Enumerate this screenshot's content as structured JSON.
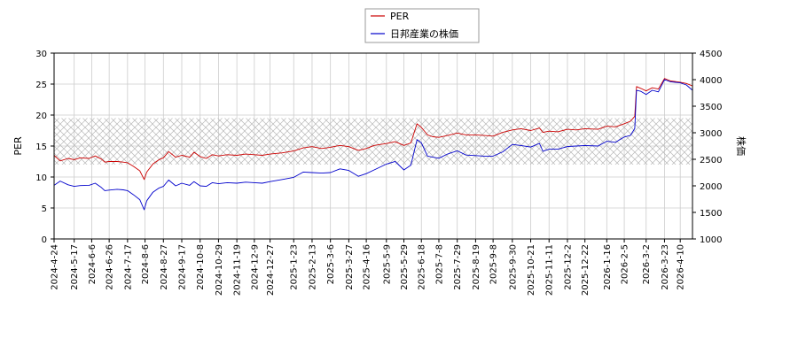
{
  "chart_data": {
    "type": "line",
    "legend": {
      "placement": "top-center",
      "entries": [
        {
          "name": "PER",
          "color": "#cc0000"
        },
        {
          "name": "日邦産業の株価",
          "color": "#0000cc"
        }
      ]
    },
    "ylabel_left": "PER",
    "ylabel_right": "株価",
    "ylim_left": [
      0,
      30
    ],
    "ylim_right": [
      1000,
      4500
    ],
    "yticks_left": [
      "0",
      "5",
      "10",
      "15",
      "20",
      "25",
      "30"
    ],
    "yticks_right": [
      "1000",
      "1500",
      "2000",
      "2500",
      "3000",
      "3500",
      "4000",
      "4500"
    ],
    "xlim": [
      "2024-04-24",
      "2026-04-24"
    ],
    "x_ticks": [
      "2024-4-24",
      "2024-5-17",
      "2024-6-6",
      "2024-6-26",
      "2024-7-17",
      "2024-8-6",
      "2024-8-27",
      "2024-9-17",
      "2024-10-8",
      "2024-10-29",
      "2024-11-19",
      "2024-12-9",
      "2024-12-27",
      "2025-1-23",
      "2025-2-13",
      "2025-3-6",
      "2025-3-27",
      "2025-4-16",
      "2025-5-9",
      "2025-5-29",
      "2025-6-18",
      "2025-7-8",
      "2025-7-29",
      "2025-8-19",
      "2025-9-8",
      "2025-9-30",
      "2025-10-21",
      "2025-11-11",
      "2025-12-2",
      "2025-12-22",
      "2026-1-16",
      "2026-2-5",
      "2026-3-2",
      "2026-3-23",
      "2026-4-10"
    ],
    "grid": true,
    "band": {
      "axis": "left",
      "from": 12,
      "to": 19.5,
      "pattern": "crosshatch"
    },
    "series": [
      {
        "name": "PER",
        "axis": "left",
        "color": "#cc0000",
        "points": [
          [
            "2024-04-24",
            13.5
          ],
          [
            "2024-05-01",
            12.6
          ],
          [
            "2024-05-10",
            13.0
          ],
          [
            "2024-05-17",
            12.8
          ],
          [
            "2024-05-24",
            13.1
          ],
          [
            "2024-06-03",
            13.0
          ],
          [
            "2024-06-10",
            13.4
          ],
          [
            "2024-06-17",
            12.9
          ],
          [
            "2024-06-21",
            12.4
          ],
          [
            "2024-06-26",
            12.5
          ],
          [
            "2024-07-05",
            12.5
          ],
          [
            "2024-07-12",
            12.4
          ],
          [
            "2024-07-17",
            12.3
          ],
          [
            "2024-07-24",
            11.7
          ],
          [
            "2024-07-31",
            11.0
          ],
          [
            "2024-08-05",
            9.6
          ],
          [
            "2024-08-08",
            10.8
          ],
          [
            "2024-08-15",
            12.1
          ],
          [
            "2024-08-22",
            12.8
          ],
          [
            "2024-08-27",
            13.1
          ],
          [
            "2024-09-02",
            14.1
          ],
          [
            "2024-09-10",
            13.2
          ],
          [
            "2024-09-17",
            13.5
          ],
          [
            "2024-09-26",
            13.2
          ],
          [
            "2024-10-01",
            14.0
          ],
          [
            "2024-10-08",
            13.3
          ],
          [
            "2024-10-15",
            13.0
          ],
          [
            "2024-10-22",
            13.6
          ],
          [
            "2024-10-29",
            13.4
          ],
          [
            "2024-11-08",
            13.6
          ],
          [
            "2024-11-19",
            13.5
          ],
          [
            "2024-11-29",
            13.7
          ],
          [
            "2024-12-09",
            13.6
          ],
          [
            "2024-12-18",
            13.5
          ],
          [
            "2024-12-27",
            13.7
          ],
          [
            "2025-01-10",
            13.9
          ],
          [
            "2025-01-23",
            14.2
          ],
          [
            "2025-02-03",
            14.7
          ],
          [
            "2025-02-13",
            14.9
          ],
          [
            "2025-02-24",
            14.6
          ],
          [
            "2025-03-06",
            14.8
          ],
          [
            "2025-03-17",
            15.1
          ],
          [
            "2025-03-27",
            14.9
          ],
          [
            "2025-04-07",
            14.3
          ],
          [
            "2025-04-16",
            14.6
          ],
          [
            "2025-04-25",
            15.1
          ],
          [
            "2025-05-09",
            15.4
          ],
          [
            "2025-05-19",
            15.7
          ],
          [
            "2025-05-29",
            15.1
          ],
          [
            "2025-06-06",
            15.5
          ],
          [
            "2025-06-13",
            18.6
          ],
          [
            "2025-06-18",
            18.0
          ],
          [
            "2025-06-25",
            16.8
          ],
          [
            "2025-07-01",
            16.5
          ],
          [
            "2025-07-08",
            16.4
          ],
          [
            "2025-07-18",
            16.7
          ],
          [
            "2025-07-29",
            17.1
          ],
          [
            "2025-08-08",
            16.8
          ],
          [
            "2025-08-19",
            16.8
          ],
          [
            "2025-08-29",
            16.7
          ],
          [
            "2025-09-08",
            16.6
          ],
          [
            "2025-09-19",
            17.2
          ],
          [
            "2025-09-30",
            17.6
          ],
          [
            "2025-10-10",
            17.8
          ],
          [
            "2025-10-21",
            17.5
          ],
          [
            "2025-10-31",
            17.9
          ],
          [
            "2025-11-04",
            17.2
          ],
          [
            "2025-11-11",
            17.4
          ],
          [
            "2025-11-21",
            17.3
          ],
          [
            "2025-12-02",
            17.7
          ],
          [
            "2025-12-12",
            17.6
          ],
          [
            "2025-12-22",
            17.8
          ],
          [
            "2026-01-06",
            17.7
          ],
          [
            "2026-01-16",
            18.2
          ],
          [
            "2026-01-26",
            18.1
          ],
          [
            "2026-02-05",
            18.6
          ],
          [
            "2026-02-12",
            19.0
          ],
          [
            "2026-02-17",
            19.8
          ],
          [
            "2026-02-19",
            24.6
          ],
          [
            "2026-02-24",
            24.3
          ],
          [
            "2026-03-02",
            23.9
          ],
          [
            "2026-03-09",
            24.4
          ],
          [
            "2026-03-16",
            24.2
          ],
          [
            "2026-03-23",
            25.9
          ],
          [
            "2026-03-30",
            25.5
          ],
          [
            "2026-04-10",
            25.3
          ],
          [
            "2026-04-17",
            25.1
          ],
          [
            "2026-04-24",
            24.7
          ]
        ]
      },
      {
        "name": "日邦産業の株価",
        "axis": "right",
        "color": "#0000cc",
        "points": [
          [
            "2024-04-24",
            2010
          ],
          [
            "2024-05-01",
            2090
          ],
          [
            "2024-05-10",
            2020
          ],
          [
            "2024-05-17",
            1990
          ],
          [
            "2024-05-24",
            2005
          ],
          [
            "2024-06-03",
            2010
          ],
          [
            "2024-06-10",
            2050
          ],
          [
            "2024-06-17",
            1970
          ],
          [
            "2024-06-21",
            1910
          ],
          [
            "2024-06-26",
            1920
          ],
          [
            "2024-07-05",
            1935
          ],
          [
            "2024-07-12",
            1925
          ],
          [
            "2024-07-17",
            1910
          ],
          [
            "2024-07-24",
            1830
          ],
          [
            "2024-07-31",
            1740
          ],
          [
            "2024-08-05",
            1550
          ],
          [
            "2024-08-08",
            1720
          ],
          [
            "2024-08-15",
            1880
          ],
          [
            "2024-08-22",
            1960
          ],
          [
            "2024-08-27",
            1990
          ],
          [
            "2024-09-02",
            2110
          ],
          [
            "2024-09-10",
            2000
          ],
          [
            "2024-09-17",
            2050
          ],
          [
            "2024-09-26",
            2010
          ],
          [
            "2024-10-01",
            2080
          ],
          [
            "2024-10-08",
            2000
          ],
          [
            "2024-10-15",
            1990
          ],
          [
            "2024-10-22",
            2060
          ],
          [
            "2024-10-29",
            2040
          ],
          [
            "2024-11-08",
            2060
          ],
          [
            "2024-11-19",
            2050
          ],
          [
            "2024-11-29",
            2070
          ],
          [
            "2024-12-09",
            2060
          ],
          [
            "2024-12-18",
            2050
          ],
          [
            "2024-12-27",
            2080
          ],
          [
            "2025-01-10",
            2120
          ],
          [
            "2025-01-23",
            2160
          ],
          [
            "2025-02-03",
            2260
          ],
          [
            "2025-02-13",
            2250
          ],
          [
            "2025-02-24",
            2240
          ],
          [
            "2025-03-06",
            2250
          ],
          [
            "2025-03-17",
            2320
          ],
          [
            "2025-03-27",
            2290
          ],
          [
            "2025-04-07",
            2180
          ],
          [
            "2025-04-16",
            2230
          ],
          [
            "2025-04-25",
            2300
          ],
          [
            "2025-05-09",
            2410
          ],
          [
            "2025-05-19",
            2460
          ],
          [
            "2025-05-29",
            2300
          ],
          [
            "2025-06-06",
            2390
          ],
          [
            "2025-06-13",
            2870
          ],
          [
            "2025-06-18",
            2810
          ],
          [
            "2025-06-25",
            2560
          ],
          [
            "2025-07-01",
            2540
          ],
          [
            "2025-07-08",
            2520
          ],
          [
            "2025-07-18",
            2600
          ],
          [
            "2025-07-29",
            2660
          ],
          [
            "2025-08-08",
            2580
          ],
          [
            "2025-08-19",
            2570
          ],
          [
            "2025-08-29",
            2560
          ],
          [
            "2025-09-08",
            2560
          ],
          [
            "2025-09-19",
            2640
          ],
          [
            "2025-09-30",
            2780
          ],
          [
            "2025-10-10",
            2760
          ],
          [
            "2025-10-21",
            2730
          ],
          [
            "2025-10-31",
            2800
          ],
          [
            "2025-11-04",
            2650
          ],
          [
            "2025-11-11",
            2690
          ],
          [
            "2025-11-21",
            2690
          ],
          [
            "2025-12-02",
            2740
          ],
          [
            "2025-12-12",
            2750
          ],
          [
            "2025-12-22",
            2760
          ],
          [
            "2026-01-06",
            2750
          ],
          [
            "2026-01-16",
            2840
          ],
          [
            "2026-01-26",
            2820
          ],
          [
            "2026-02-05",
            2920
          ],
          [
            "2026-02-12",
            2950
          ],
          [
            "2026-02-17",
            3080
          ],
          [
            "2026-02-19",
            3800
          ],
          [
            "2026-02-24",
            3780
          ],
          [
            "2026-03-02",
            3720
          ],
          [
            "2026-03-09",
            3800
          ],
          [
            "2026-03-16",
            3770
          ],
          [
            "2026-03-23",
            4000
          ],
          [
            "2026-03-30",
            3960
          ],
          [
            "2026-04-10",
            3940
          ],
          [
            "2026-04-17",
            3900
          ],
          [
            "2026-04-24",
            3800
          ]
        ]
      }
    ]
  }
}
